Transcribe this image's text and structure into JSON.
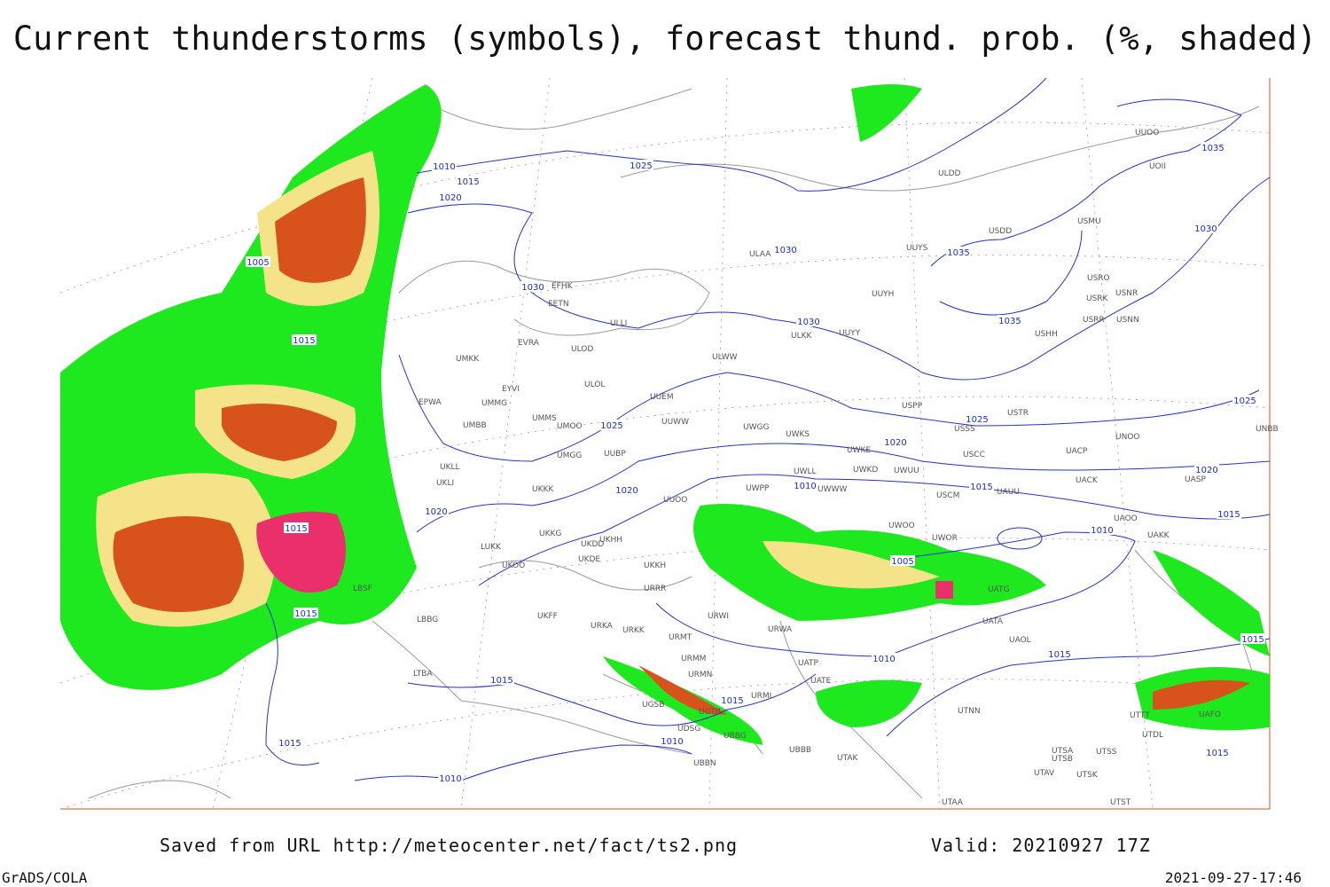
{
  "header": {
    "title": "Current thunderstorms (symbols), forecast thund. prob. (%, shaded)"
  },
  "map": {
    "stations": [
      "UUOO",
      "UOII",
      "ULDD",
      "USMU",
      "USDD",
      "UUYS",
      "ULAA",
      "USRO",
      "USRK",
      "USNR",
      "UUYH",
      "EFHK",
      "EETN",
      "USRR",
      "USNN",
      "ULLI",
      "UUYY",
      "USHH",
      "ULKK",
      "EVRA",
      "ULOD",
      "UMKK",
      "ULWW",
      "ULOL",
      "EYVI",
      "UUEM",
      "EPWA",
      "UMMG",
      "USPP",
      "USTR",
      "UMMS",
      "UMOO",
      "UUWW",
      "USSS",
      "UMBB",
      "UWGG",
      "UWKS",
      "UNOO",
      "UMGG",
      "UUBP",
      "UWKE",
      "USCC",
      "UACP",
      "UKLL",
      "UWKD",
      "UWUU",
      "UKLI",
      "UKKK",
      "UWPP",
      "UWWW",
      "USCM",
      "UAUU",
      "UACK",
      "UASP",
      "UUOO",
      "UWLL",
      "UAOO",
      "UAKK",
      "UWOO",
      "UWOR",
      "UKKG",
      "UKOO",
      "UKDD",
      "UKHH",
      "UKDE",
      "UKKH",
      "LUKK",
      "URRR",
      "UATG",
      "LBSF",
      "UKFF",
      "URWI",
      "UATA",
      "LBBG",
      "URKA",
      "URKK",
      "URWA",
      "UAOL",
      "URMT",
      "UATP",
      "URMM",
      "URMN",
      "UATE",
      "LTBA",
      "URML",
      "UGSB",
      "UGTB",
      "UTNN",
      "UDSG",
      "UTTT",
      "UAFO",
      "UBBG",
      "UTDL",
      "UBBN",
      "UBBB",
      "UTAK",
      "UTSA",
      "UTSS",
      "UTSB",
      "UTAV",
      "UTSK",
      "UTAA",
      "UTST",
      "UNBB"
    ],
    "isobar_labels": [
      1010,
      1015,
      1020,
      1025,
      1005,
      1030,
      1030,
      1035,
      1035,
      1030,
      1035,
      1030,
      1015,
      1025,
      1025,
      1025,
      1020,
      1020,
      1015,
      1010,
      1020,
      1020,
      1015,
      1015,
      1010,
      1005,
      1015,
      1010,
      1015,
      1015,
      1015,
      1015,
      1010,
      1015,
      1010,
      1015
    ]
  },
  "footer": {
    "source": "Saved from URL http://meteocenter.net/fact/ts2.png",
    "valid": "Valid: 20210927 17Z",
    "software": "GrADS/COLA",
    "timestamp": "2021-09-27-17:46"
  }
}
